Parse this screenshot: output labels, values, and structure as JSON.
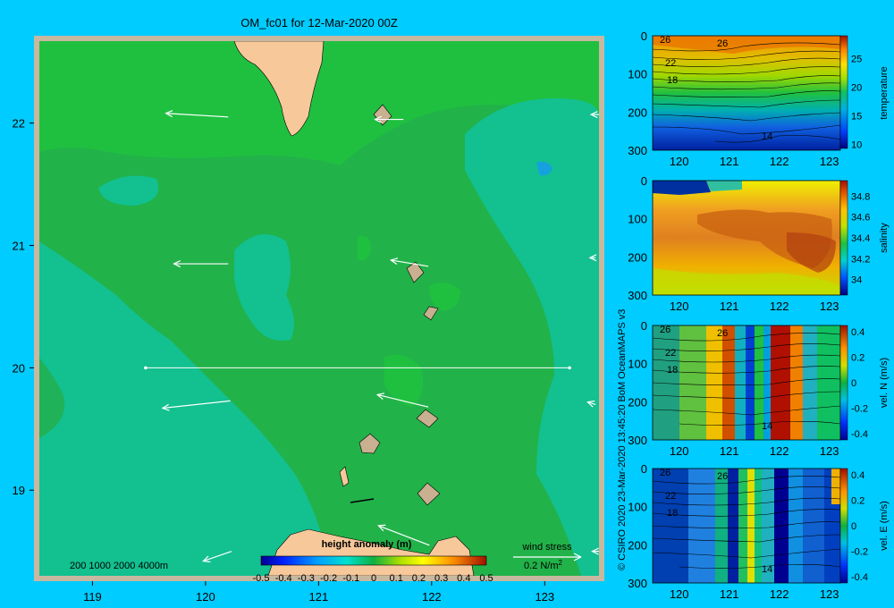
{
  "title": "OM_fc01 for 12-Mar-2020 00Z",
  "credit": "© CSIRO 2020   23-Mar-2020 13:45:20 BoM OceanMAPS v3",
  "colors": {
    "page_bg": "#00ccff",
    "frame": "#c8b8a0",
    "land": "#f7c89a",
    "sea_green": "#22b24a",
    "arrow": "#ffffff"
  },
  "map": {
    "x_ticks": [
      "119",
      "120",
      "121",
      "122",
      "123"
    ],
    "y_ticks": [
      "22",
      "21",
      "20",
      "19"
    ],
    "x_range": [
      118.53,
      123.48
    ],
    "y_range": [
      18.3,
      22.67
    ],
    "depth_scale_label": "200  1000  2000  4000m",
    "section_line": {
      "lon": [
        119.47,
        123.22
      ],
      "lat": 20.0
    },
    "wind_stress": {
      "label1": "wind stress",
      "label2": "0.2 N/m",
      "superscript": "2"
    },
    "colorbar": {
      "title": "height anomaly  (m)",
      "ticks": [
        "-0.5",
        "-0.4",
        "-0.3",
        "-0.2",
        "-0.1",
        "0",
        "0.1",
        "0.2",
        "0.3",
        "0.4",
        "0.5"
      ],
      "range": [
        -0.5,
        0.5
      ]
    }
  },
  "panels": [
    {
      "id": "temperature",
      "cbar_label": "temperature",
      "cbar_ticks": [
        "25",
        "20",
        "15",
        "10"
      ],
      "cbar_range": [
        9,
        29
      ],
      "contour_labels": [
        "26",
        "26",
        "22",
        "18",
        "14"
      ]
    },
    {
      "id": "salinity",
      "cbar_label": "salinity",
      "cbar_ticks": [
        "34.8",
        "34.6",
        "34.4",
        "34.2",
        "34"
      ],
      "cbar_range": [
        33.85,
        34.95
      ]
    },
    {
      "id": "vel_n",
      "cbar_label": "vel. N  (m/s)",
      "cbar_ticks": [
        "0.4",
        "0.2",
        "0",
        "-0.2",
        "-0.4"
      ],
      "cbar_range": [
        -0.45,
        0.45
      ],
      "contour_labels": [
        "26",
        "26",
        "22",
        "18",
        "14"
      ]
    },
    {
      "id": "vel_e",
      "cbar_label": "vel. E  (m/s)",
      "cbar_ticks": [
        "0.4",
        "0.2",
        "0",
        "-0.2",
        "-0.4"
      ],
      "cbar_range": [
        -0.45,
        0.45
      ],
      "contour_labels": [
        "26",
        "26",
        "22",
        "18",
        "14"
      ]
    }
  ],
  "chart_data": [
    {
      "type": "heatmap",
      "title": "OM_fc01 for 12-Mar-2020 00Z",
      "field": "height anomaly (m)",
      "x_ticks": [
        119,
        120,
        121,
        122,
        123
      ],
      "y_ticks": [
        22,
        21,
        20,
        19
      ],
      "colorbar_range": [
        -0.5,
        0.5
      ],
      "wind_stress_arrows": [
        {
          "lon": 120.2,
          "lat": 22.05,
          "dx": -0.55,
          "dy": 0.03
        },
        {
          "lon": 121.75,
          "lat": 22.03,
          "dx": -0.25,
          "dy": 0.0
        },
        {
          "lon": 123.48,
          "lat": 22.07,
          "dx": -0.07,
          "dy": 0.0
        },
        {
          "lon": 120.2,
          "lat": 20.85,
          "dx": -0.48,
          "dy": 0.0
        },
        {
          "lon": 121.97,
          "lat": 20.83,
          "dx": -0.33,
          "dy": 0.05
        },
        {
          "lon": 123.45,
          "lat": 20.9,
          "dx": -0.05,
          "dy": 0.0
        },
        {
          "lon": 120.22,
          "lat": 19.73,
          "dx": -0.6,
          "dy": -0.06
        },
        {
          "lon": 121.97,
          "lat": 19.68,
          "dx": -0.45,
          "dy": 0.1
        },
        {
          "lon": 123.45,
          "lat": 19.7,
          "dx": -0.07,
          "dy": 0.02
        },
        {
          "lon": 121.98,
          "lat": 18.55,
          "dx": -0.45,
          "dy": 0.16
        },
        {
          "lon": 120.23,
          "lat": 18.5,
          "dx": -0.25,
          "dy": -0.08
        },
        {
          "lon": 123.48,
          "lat": 18.5,
          "dx": -0.06,
          "dy": 0.0
        }
      ]
    },
    {
      "type": "heatmap",
      "field": "temperature",
      "x_ticks": [
        120,
        121,
        122,
        123
      ],
      "y_ticks": [
        0,
        100,
        200,
        300
      ],
      "x_range": [
        119.47,
        123.22
      ],
      "y_range": [
        0,
        300
      ],
      "colorbar_ticks": [
        25,
        20,
        15,
        10
      ],
      "contour_labels": [
        26,
        26,
        22,
        18,
        14
      ]
    },
    {
      "type": "heatmap",
      "field": "salinity",
      "x_ticks": [
        120,
        121,
        122,
        123
      ],
      "y_ticks": [
        0,
        100,
        200,
        300
      ],
      "x_range": [
        119.47,
        123.22
      ],
      "y_range": [
        0,
        300
      ],
      "colorbar_ticks": [
        34.8,
        34.6,
        34.4,
        34.2,
        34
      ]
    },
    {
      "type": "heatmap",
      "field": "vel. N (m/s)",
      "x_ticks": [
        120,
        121,
        122,
        123
      ],
      "y_ticks": [
        0,
        100,
        200,
        300
      ],
      "x_range": [
        119.47,
        123.22
      ],
      "y_range": [
        0,
        300
      ],
      "colorbar_ticks": [
        0.4,
        0.2,
        0,
        -0.2,
        -0.4
      ],
      "contour_labels": [
        26,
        26,
        22,
        18,
        14
      ]
    },
    {
      "type": "heatmap",
      "field": "vel. E (m/s)",
      "x_ticks": [
        120,
        121,
        122,
        123
      ],
      "y_ticks": [
        0,
        100,
        200,
        300
      ],
      "x_range": [
        119.47,
        123.22
      ],
      "y_range": [
        0,
        300
      ],
      "colorbar_ticks": [
        0.4,
        0.2,
        0,
        -0.2,
        -0.4
      ],
      "contour_labels": [
        26,
        26,
        22,
        18,
        14
      ]
    }
  ]
}
